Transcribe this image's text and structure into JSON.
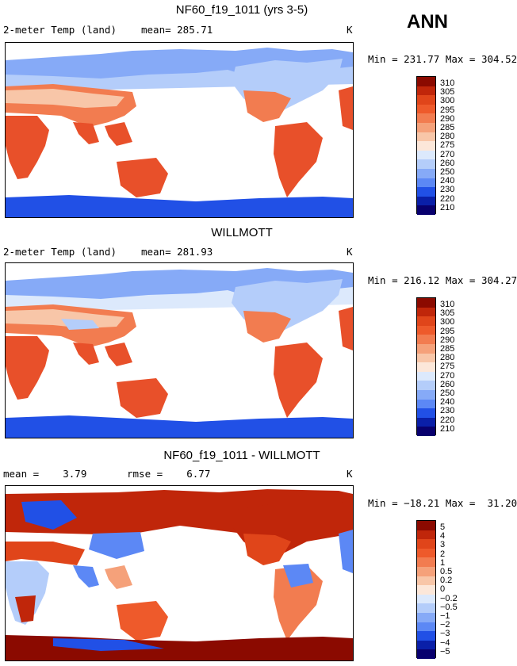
{
  "season": "ANN",
  "panels": [
    {
      "title": "NF60_f19_1011 (yrs 3-5)",
      "left_label": "2-meter Temp (land)",
      "mid_label": "mean= 285.71",
      "unit": "K",
      "minmax": "Min = 231.77 Max = 304.52",
      "colorbar_labels": [
        "310",
        "305",
        "300",
        "295",
        "290",
        "285",
        "280",
        "275",
        "270",
        "260",
        "250",
        "240",
        "230",
        "220",
        "210"
      ]
    },
    {
      "title": "WILLMOTT",
      "left_label": "2-meter Temp (land)",
      "mid_label": "mean= 281.93",
      "unit": "K",
      "minmax": "Min = 216.12 Max = 304.27",
      "colorbar_labels": [
        "310",
        "305",
        "300",
        "295",
        "290",
        "285",
        "280",
        "275",
        "270",
        "260",
        "250",
        "240",
        "230",
        "220",
        "210"
      ]
    },
    {
      "title": "NF60_f19_1011 - WILLMOTT",
      "left_label": "mean =    3.79",
      "mid_label": "rmse =    6.77",
      "unit": "K",
      "minmax": "Min = −18.21 Max =  31.20",
      "colorbar_labels": [
        "5",
        "4",
        "3",
        "2",
        "1",
        "0.5",
        "0.2",
        "0",
        "−0.2",
        "−0.5",
        "−1",
        "−2",
        "−3",
        "−4",
        "−5"
      ]
    }
  ],
  "colors": {
    "ramp": [
      "#08006e",
      "#0a1fa8",
      "#1238cf",
      "#2150e6",
      "#3a6af0",
      "#5c88f5",
      "#86aaf7",
      "#b4cdfa",
      "#dce9fc",
      "#fce7d9",
      "#f8c6a8",
      "#f5a17a",
      "#f27c50",
      "#ee5a2b",
      "#d63210",
      "#8b0a00"
    ],
    "land_warm": "#e8502a",
    "land_cold": "#5c88f5",
    "ocean": "#ffffff"
  }
}
